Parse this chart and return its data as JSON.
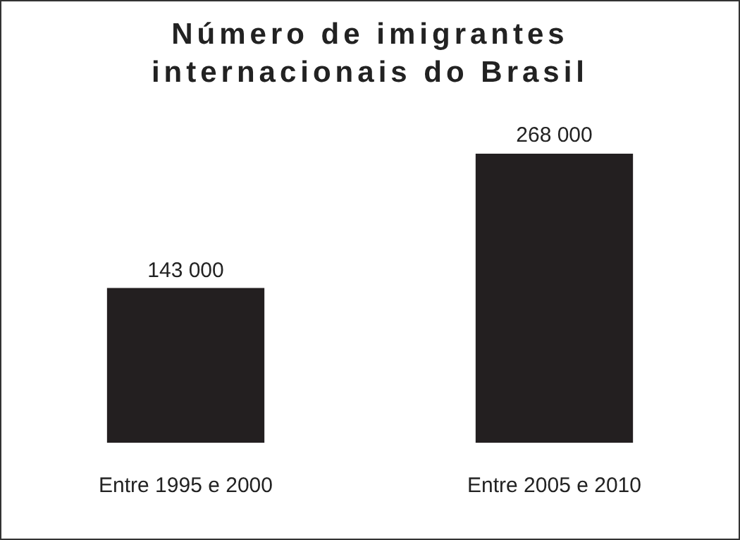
{
  "chart_data": {
    "type": "bar",
    "title": "Número de imigrantes internacionais do Brasil",
    "categories": [
      "Entre 1995 e 2000",
      "Entre 2005 e 2010"
    ],
    "values": [
      143000,
      268000
    ],
    "value_labels": [
      "143 000",
      "268 000"
    ],
    "color": "#231f20",
    "grid": false,
    "legend": false
  }
}
